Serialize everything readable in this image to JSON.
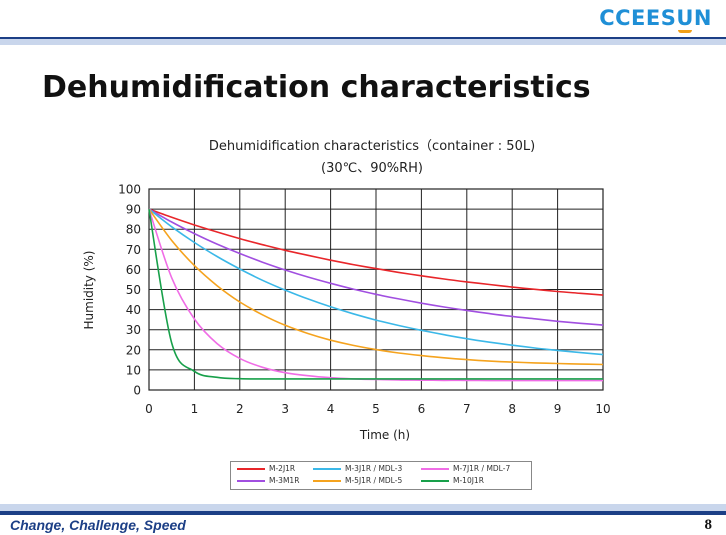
{
  "brand": {
    "logo_text_a": "CCEES",
    "logo_text_u": "U",
    "logo_text_b": "N",
    "accent": "#1f8fd6",
    "accent2": "#f2a017"
  },
  "slide": {
    "title": "Dehumidification characteristics",
    "footer_tagline": "Change, Challenge, Speed",
    "page_number": "8"
  },
  "chart_data": {
    "type": "line",
    "title": "Dehumidification characteristics（container : 50L)",
    "subtitle": "(30℃、90%RH)",
    "xlabel": "Time (h)",
    "ylabel": "Humidity (%)",
    "xlim": [
      0,
      10
    ],
    "ylim": [
      0,
      100
    ],
    "xticks": [
      "0",
      "1",
      "2",
      "3",
      "4",
      "5",
      "6",
      "7",
      "8",
      "9",
      "10"
    ],
    "yticks": [
      "0",
      "10",
      "20",
      "30",
      "40",
      "50",
      "60",
      "70",
      "80",
      "90",
      "100"
    ],
    "grid": true,
    "legend_position": "bottom",
    "x": [
      0,
      0.5,
      1,
      1.5,
      2,
      2.5,
      3,
      3.5,
      4,
      4.5,
      5,
      5.5,
      6,
      6.5,
      7,
      7.5,
      8,
      8.5,
      9,
      9.5,
      10
    ],
    "series": [
      {
        "name": "M-2J1R",
        "color": "#e8262a",
        "values": [
          90,
          85.9,
          82.1,
          78.6,
          75.3,
          72.3,
          69.5,
          67,
          64.6,
          62.4,
          60.4,
          58.5,
          56.8,
          55.2,
          53.8,
          52.5,
          51.2,
          50.1,
          49,
          48.1,
          47.2
        ]
      },
      {
        "name": "M-3M1R",
        "color": "#a14fe0",
        "values": [
          90,
          83.6,
          77.8,
          72.6,
          67.9,
          63.6,
          59.7,
          56.2,
          53.1,
          50.2,
          47.6,
          45.3,
          43.2,
          41.3,
          39.6,
          38,
          36.6,
          35.4,
          34.2,
          33.2,
          32.3
        ]
      },
      {
        "name": "M-3J1R / MDL-3",
        "color": "#3bb8e8",
        "values": [
          90,
          81.2,
          73.4,
          66.4,
          60.2,
          54.6,
          49.7,
          45.3,
          41.4,
          37.9,
          34.8,
          32.1,
          29.7,
          27.5,
          25.5,
          23.8,
          22.3,
          20.9,
          19.7,
          18.6,
          17.6
        ]
      },
      {
        "name": "M-5J1R / MDL-5",
        "color": "#f5a31e",
        "values": [
          90,
          74.4,
          61.9,
          51.9,
          43.8,
          37.4,
          32.2,
          28.1,
          24.8,
          22.2,
          20.1,
          18.4,
          17.1,
          16,
          15.1,
          14.4,
          13.9,
          13.5,
          13.2,
          12.9,
          12.7
        ]
      },
      {
        "name": "M-7J1R / MDL-7",
        "color": "#f06de6",
        "values": [
          90,
          55.8,
          35.3,
          23.1,
          15.7,
          11.3,
          8.6,
          7.1,
          6.1,
          5.5,
          5.2,
          5,
          4.9,
          4.8,
          4.8,
          4.7,
          4.7,
          4.7,
          4.7,
          4.7,
          4.7
        ]
      },
      {
        "name": "M-10J1R",
        "color": "#18a04a",
        "values": [
          90,
          23.4,
          9.3,
          6.3,
          5.6,
          5.5,
          5.5,
          5.5,
          5.5,
          5.5,
          5.5,
          5.5,
          5.5,
          5.5,
          5.5,
          5.5,
          5.5,
          5.5,
          5.5,
          5.5,
          5.5
        ]
      }
    ],
    "legend_rows": [
      [
        "M-2J1R",
        "M-3J1R / MDL-3",
        "M-7J1R / MDL-7"
      ],
      [
        "M-3M1R",
        "M-5J1R / MDL-5",
        "M-10J1R"
      ]
    ]
  }
}
